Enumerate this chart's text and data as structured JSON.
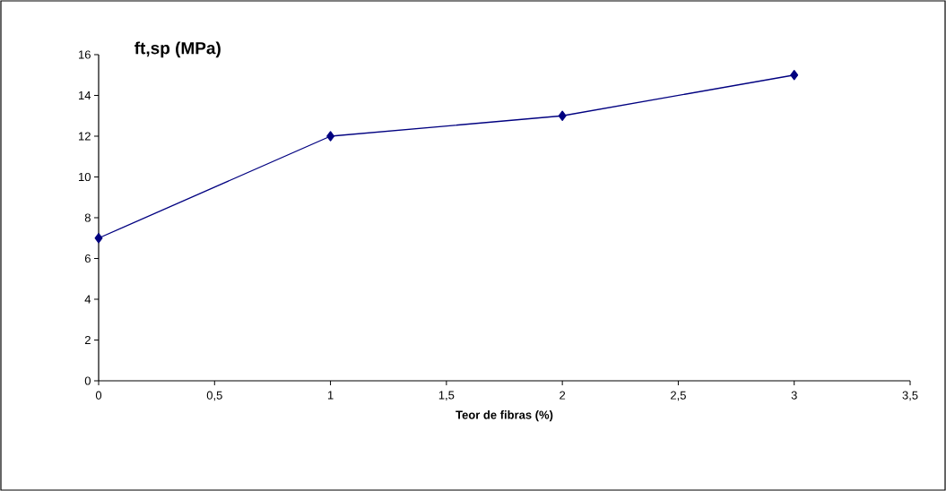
{
  "chart_data": {
    "type": "line",
    "title": "ft,sp (MPa)",
    "xlabel": "Teor de fibras (%)",
    "x": [
      0,
      1,
      2,
      3
    ],
    "series": [
      {
        "color": "#000080",
        "values": [
          7,
          12,
          13,
          15
        ]
      }
    ],
    "xlim": [
      0,
      3.5
    ],
    "xticks": [
      0,
      {
        "value": 0.5,
        "label": "0,5"
      },
      1,
      {
        "value": 1.5,
        "label": "1,5"
      },
      2,
      {
        "value": 2.5,
        "label": "2,5"
      },
      3,
      {
        "value": 3.5,
        "label": "3,5"
      }
    ],
    "ylim": [
      0,
      16
    ],
    "yticks": [
      0,
      2,
      4,
      6,
      8,
      10,
      12,
      14,
      16
    ],
    "marker": "diamond",
    "line_style": "solid",
    "grid": false,
    "legend": false
  }
}
